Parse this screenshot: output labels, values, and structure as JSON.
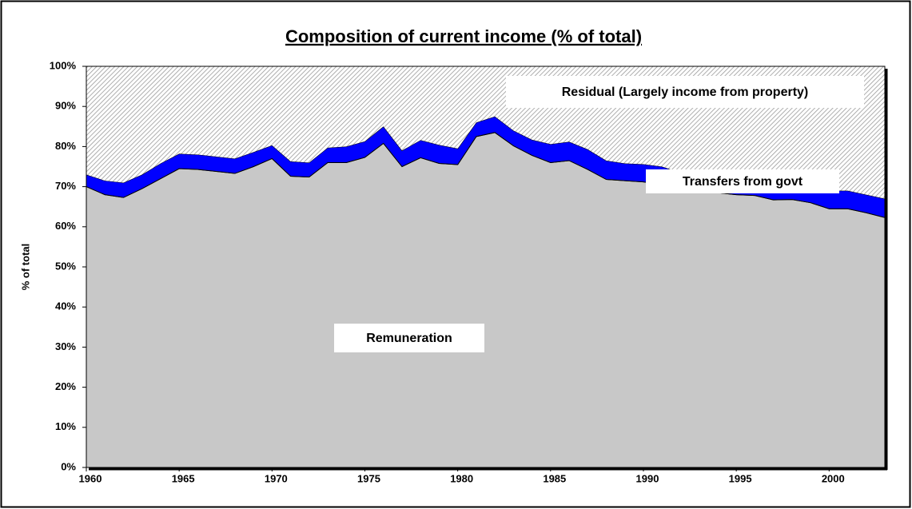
{
  "chart_data": {
    "type": "stacked_area",
    "title": "Composition of current income (% of total)",
    "y_label": "% of total",
    "x": [
      1960,
      1961,
      1962,
      1963,
      1964,
      1965,
      1966,
      1967,
      1968,
      1969,
      1970,
      1971,
      1972,
      1973,
      1974,
      1975,
      1976,
      1977,
      1978,
      1979,
      1980,
      1981,
      1982,
      1983,
      1984,
      1985,
      1986,
      1987,
      1988,
      1989,
      1990,
      1991,
      1992,
      1993,
      1994,
      1995,
      1996,
      1997,
      1998,
      1999,
      2000,
      2001,
      2002,
      2003
    ],
    "series": [
      {
        "name": "Remuneration",
        "color": "#c8c8c8",
        "values": [
          70,
          68,
          67.3,
          69.5,
          72,
          74.5,
          74.3,
          73.8,
          73.3,
          75,
          77,
          72.6,
          72.4,
          76,
          76,
          77.3,
          80.8,
          75,
          77.2,
          75.8,
          75.5,
          82.5,
          83.5,
          80.2,
          77.8,
          76,
          76.5,
          74.3,
          71.8,
          71.5,
          71.2,
          70.5,
          68.5,
          69,
          68.5,
          68,
          67.8,
          66.7,
          66.8,
          66,
          64.5,
          64.5,
          63.5,
          62.3
        ]
      },
      {
        "name": "Transfers from govt",
        "color": "#0000ff",
        "values": [
          3,
          3.5,
          3.7,
          3.5,
          3.8,
          3.7,
          3.7,
          3.7,
          3.7,
          3.6,
          3.3,
          3.7,
          3.6,
          3.7,
          4,
          4,
          4.2,
          4,
          4.4,
          4.6,
          4,
          3.5,
          4,
          3.8,
          3.9,
          4.6,
          4.7,
          5,
          4.7,
          4.3,
          4.4,
          4.5,
          5,
          3.5,
          3.5,
          3.5,
          3.2,
          3.8,
          3.2,
          3.5,
          4.5,
          4.5,
          4.5,
          4.7
        ]
      },
      {
        "name": "Residual (Largely income from property)",
        "color": "hatch",
        "values": [
          27,
          28.5,
          29,
          27,
          24.2,
          21.8,
          22,
          22.5,
          23,
          21.4,
          19.7,
          23.7,
          24,
          20.3,
          20,
          18.7,
          15,
          21,
          18.4,
          19.6,
          20.5,
          14,
          12.5,
          16,
          18.3,
          19.4,
          18.8,
          20.7,
          23.5,
          24.2,
          24.4,
          25,
          26.5,
          27.5,
          28,
          28.5,
          29,
          29.5,
          30,
          30.5,
          31,
          31,
          32,
          33
        ]
      }
    ],
    "xlim": [
      1960,
      2003
    ],
    "xticks": [
      1960,
      1965,
      1970,
      1975,
      1980,
      1985,
      1990,
      1995,
      2000
    ],
    "ylim": [
      0,
      100
    ],
    "yticks": [
      {
        "value": 0,
        "label": "0%"
      },
      {
        "value": 10,
        "label": "10%"
      },
      {
        "value": 20,
        "label": "20%"
      },
      {
        "value": 30,
        "label": "30%"
      },
      {
        "value": 40,
        "label": "40%"
      },
      {
        "value": 50,
        "label": "50%"
      },
      {
        "value": 60,
        "label": "60%"
      },
      {
        "value": 70,
        "label": "70%"
      },
      {
        "value": 80,
        "label": "80%"
      },
      {
        "value": 90,
        "label": "90%"
      },
      {
        "value": 100,
        "label": "100%"
      }
    ]
  }
}
